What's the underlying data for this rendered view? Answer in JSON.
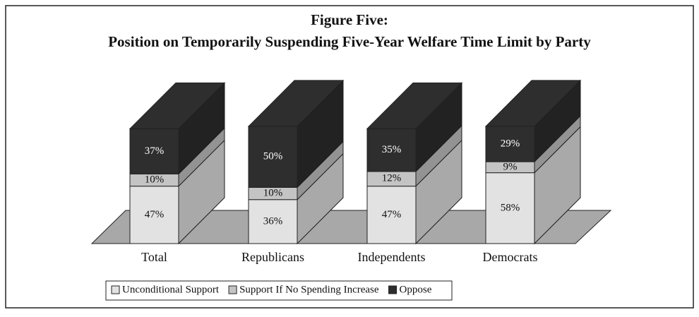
{
  "chart_data": {
    "type": "bar",
    "stacked": true,
    "title": "Figure Five:",
    "subtitle": "Position on Temporarily Suspending Five-Year Welfare Time Limit by Party",
    "categories": [
      "Total",
      "Republicans",
      "Independents",
      "Democrats"
    ],
    "series": [
      {
        "name": "Unconditional Support",
        "color": "#e2e2e2",
        "values": [
          47,
          36,
          47,
          58
        ],
        "value_labels": [
          "47%",
          "36%",
          "47%",
          "58%"
        ]
      },
      {
        "name": "Support If No Spending Increase",
        "color": "#c4c4c4",
        "values": [
          10,
          10,
          12,
          9
        ],
        "value_labels": [
          "10%",
          "10%",
          "12%",
          "9%"
        ]
      },
      {
        "name": "Oppose",
        "color": "#2e2e2e",
        "values": [
          37,
          50,
          35,
          29
        ],
        "value_labels": [
          "37%",
          "50%",
          "35%",
          "29%"
        ]
      }
    ]
  }
}
